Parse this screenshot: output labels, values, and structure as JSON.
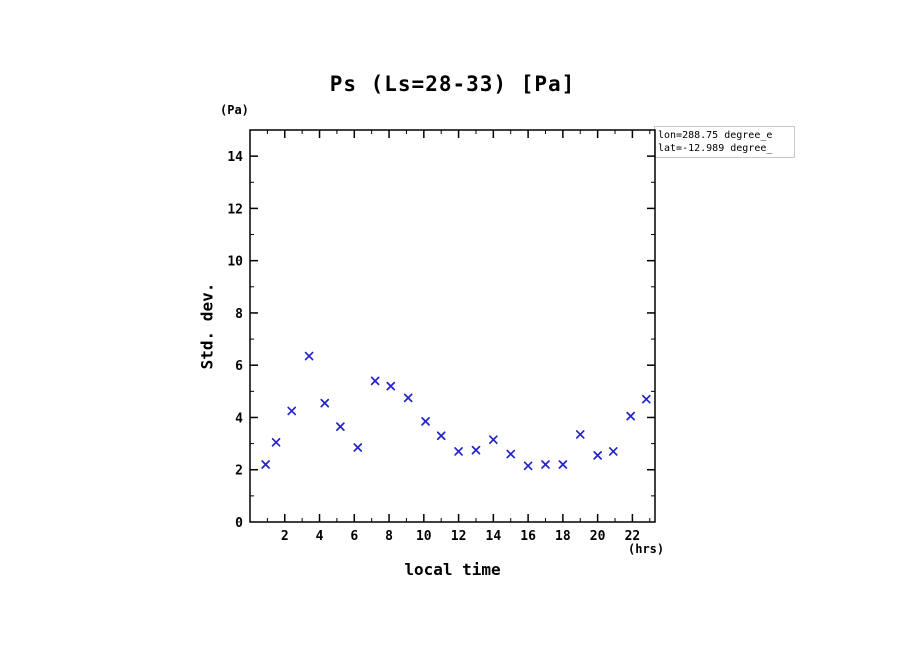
{
  "chart_data": {
    "type": "scatter",
    "title": "Ps (Ls=28-33) [Pa]",
    "xlabel": "local time",
    "x_unit": "(hrs)",
    "ylabel": "Std. dev.",
    "y_unit": "(Pa)",
    "annotations": [
      "lon=288.75 degree_e",
      "lat=-12.989 degree_"
    ],
    "marker": "x",
    "marker_color": "#2222cc",
    "axis_color": "#000000",
    "grid": false,
    "xlim": [
      0,
      23.3
    ],
    "ylim": [
      0,
      15
    ],
    "xticks": [
      2,
      4,
      6,
      8,
      10,
      12,
      14,
      16,
      18,
      20,
      22
    ],
    "yticks": [
      0,
      2,
      4,
      6,
      8,
      10,
      12,
      14
    ],
    "points": [
      {
        "x": 0.9,
        "y": 2.2
      },
      {
        "x": 1.5,
        "y": 3.05
      },
      {
        "x": 2.4,
        "y": 4.25
      },
      {
        "x": 3.4,
        "y": 6.35
      },
      {
        "x": 4.3,
        "y": 4.55
      },
      {
        "x": 5.2,
        "y": 3.65
      },
      {
        "x": 6.2,
        "y": 2.85
      },
      {
        "x": 7.2,
        "y": 5.4
      },
      {
        "x": 8.1,
        "y": 5.2
      },
      {
        "x": 9.1,
        "y": 4.75
      },
      {
        "x": 10.1,
        "y": 3.85
      },
      {
        "x": 11.0,
        "y": 3.3
      },
      {
        "x": 12.0,
        "y": 2.7
      },
      {
        "x": 13.0,
        "y": 2.75
      },
      {
        "x": 14.0,
        "y": 3.15
      },
      {
        "x": 15.0,
        "y": 2.6
      },
      {
        "x": 16.0,
        "y": 2.15
      },
      {
        "x": 17.0,
        "y": 2.2
      },
      {
        "x": 18.0,
        "y": 2.2
      },
      {
        "x": 19.0,
        "y": 3.35
      },
      {
        "x": 20.0,
        "y": 2.55
      },
      {
        "x": 20.9,
        "y": 2.7
      },
      {
        "x": 21.9,
        "y": 4.05
      },
      {
        "x": 22.8,
        "y": 4.7
      }
    ]
  }
}
